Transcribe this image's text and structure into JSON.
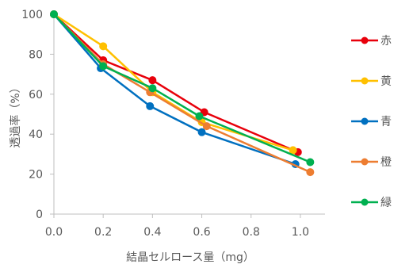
{
  "chart_data": {
    "type": "line",
    "title": "",
    "xlabel": "結晶セルロース量（mg）",
    "ylabel": "透過率（%）",
    "xlim": [
      0,
      1.1
    ],
    "ylim": [
      0,
      100
    ],
    "x_ticks": [
      "0.0",
      "0.2",
      "0.4",
      "0.6",
      "0.8",
      "1.0"
    ],
    "y_ticks": [
      "0",
      "20",
      "40",
      "60",
      "80",
      "100"
    ],
    "grid": false,
    "legend_position": "right",
    "series": [
      {
        "name": "赤",
        "color": "#e8000b",
        "x": [
          0,
          0.2,
          0.4,
          0.61,
          0.99
        ],
        "y": [
          100,
          77,
          67,
          51,
          31
        ]
      },
      {
        "name": "黄",
        "color": "#ffc000",
        "x": [
          0,
          0.2,
          0.4,
          0.6,
          0.97
        ],
        "y": [
          100,
          84,
          61,
          46,
          32
        ]
      },
      {
        "name": "青",
        "color": "#0070c0",
        "x": [
          0,
          0.19,
          0.39,
          0.6,
          0.98
        ],
        "y": [
          100,
          73,
          54,
          41,
          25
        ]
      },
      {
        "name": "橙",
        "color": "#ed7d31",
        "x": [
          0,
          0.2,
          0.39,
          0.62,
          1.04
        ],
        "y": [
          100,
          75,
          61,
          44,
          21
        ]
      },
      {
        "name": "緑",
        "color": "#00b050",
        "x": [
          0,
          0.2,
          0.4,
          0.59,
          1.04
        ],
        "y": [
          100,
          74,
          63,
          49,
          26
        ]
      }
    ]
  }
}
